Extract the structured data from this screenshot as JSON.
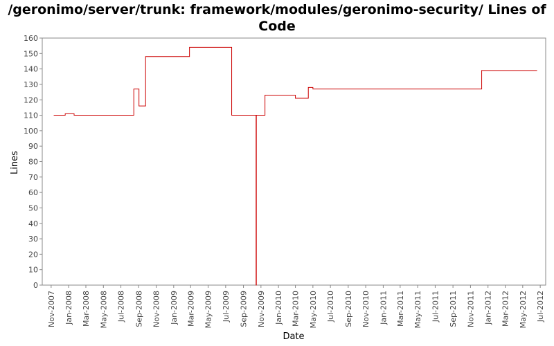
{
  "chart_data": {
    "type": "line",
    "title_line1": "/geronimo/server/trunk: framework/modules/geronimo-security/ Lines of",
    "title_line2": "Code",
    "xlabel": "Date",
    "ylabel": "Lines",
    "ylim": [
      0,
      160
    ],
    "yticks": [
      0,
      10,
      20,
      30,
      40,
      50,
      60,
      70,
      80,
      90,
      100,
      110,
      120,
      130,
      140,
      150,
      160
    ],
    "xlim": [
      "2007-10-01",
      "2012-07-20"
    ],
    "xticks": [
      {
        "date": "2007-11-01",
        "label": "Nov-2007"
      },
      {
        "date": "2008-01-01",
        "label": "Jan-2008"
      },
      {
        "date": "2008-03-01",
        "label": "Mar-2008"
      },
      {
        "date": "2008-05-01",
        "label": "May-2008"
      },
      {
        "date": "2008-07-01",
        "label": "Jul-2008"
      },
      {
        "date": "2008-09-01",
        "label": "Sep-2008"
      },
      {
        "date": "2008-11-01",
        "label": "Nov-2008"
      },
      {
        "date": "2009-01-01",
        "label": "Jan-2009"
      },
      {
        "date": "2009-03-01",
        "label": "Mar-2009"
      },
      {
        "date": "2009-05-01",
        "label": "May-2009"
      },
      {
        "date": "2009-07-01",
        "label": "Jul-2009"
      },
      {
        "date": "2009-09-01",
        "label": "Sep-2009"
      },
      {
        "date": "2009-11-01",
        "label": "Nov-2009"
      },
      {
        "date": "2010-01-01",
        "label": "Jan-2010"
      },
      {
        "date": "2010-03-01",
        "label": "Mar-2010"
      },
      {
        "date": "2010-05-01",
        "label": "May-2010"
      },
      {
        "date": "2010-07-01",
        "label": "Jul-2010"
      },
      {
        "date": "2010-09-01",
        "label": "Sep-2010"
      },
      {
        "date": "2010-11-01",
        "label": "Nov-2010"
      },
      {
        "date": "2011-01-01",
        "label": "Jan-2011"
      },
      {
        "date": "2011-03-01",
        "label": "Mar-2011"
      },
      {
        "date": "2011-05-01",
        "label": "May-2011"
      },
      {
        "date": "2011-07-01",
        "label": "Jul-2011"
      },
      {
        "date": "2011-09-01",
        "label": "Sep-2011"
      },
      {
        "date": "2011-11-01",
        "label": "Nov-2011"
      },
      {
        "date": "2012-01-01",
        "label": "Jan-2012"
      },
      {
        "date": "2012-03-01",
        "label": "Mar-2012"
      },
      {
        "date": "2012-05-01",
        "label": "May-2012"
      },
      {
        "date": "2012-07-01",
        "label": "Jul-2012"
      }
    ],
    "line_color": "#cc0000",
    "grid": false,
    "series": [
      {
        "step": true,
        "points": [
          {
            "x": "2007-11-10",
            "y": 110
          },
          {
            "x": "2007-12-20",
            "y": 111
          },
          {
            "x": "2008-01-20",
            "y": 110
          },
          {
            "x": "2008-08-15",
            "y": 127
          },
          {
            "x": "2008-09-02",
            "y": 116
          },
          {
            "x": "2008-09-25",
            "y": 148
          },
          {
            "x": "2009-02-25",
            "y": 154
          },
          {
            "x": "2009-07-22",
            "y": 110
          },
          {
            "x": "2009-10-15",
            "y": 0
          },
          {
            "x": "2009-10-16",
            "y": 110
          },
          {
            "x": "2009-11-15",
            "y": 123
          },
          {
            "x": "2010-03-01",
            "y": 121
          },
          {
            "x": "2010-04-15",
            "y": 128
          },
          {
            "x": "2010-05-01",
            "y": 127
          },
          {
            "x": "2011-12-10",
            "y": 139
          },
          {
            "x": "2012-06-20",
            "y": 139
          }
        ]
      }
    ]
  }
}
